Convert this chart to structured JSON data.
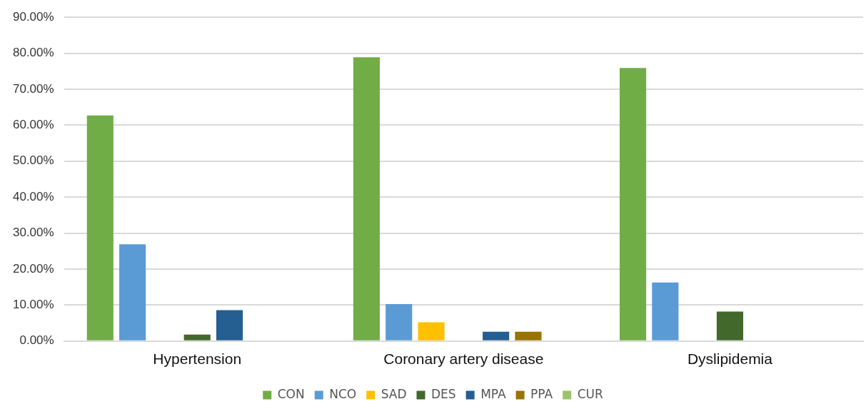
{
  "chart_data": {
    "type": "bar",
    "categories": [
      "Hypertension",
      "Coronary artery disease",
      "Dyslipidemia"
    ],
    "series": [
      {
        "name": "CON",
        "color": "#70ad47",
        "values": [
          62.7,
          78.9,
          75.9
        ]
      },
      {
        "name": "NCO",
        "color": "#5b9bd5",
        "values": [
          26.9,
          10.3,
          16.3
        ]
      },
      {
        "name": "SAD",
        "color": "#ffc000",
        "values": [
          0,
          5.2,
          0
        ]
      },
      {
        "name": "DES",
        "color": "#43682b",
        "values": [
          1.8,
          0,
          8.2
        ]
      },
      {
        "name": "MPA",
        "color": "#255e91",
        "values": [
          8.6,
          2.6,
          0
        ]
      },
      {
        "name": "PPA",
        "color": "#997300",
        "values": [
          0,
          2.6,
          0
        ]
      },
      {
        "name": "CUR",
        "color": "#9dc36a",
        "values": [
          0,
          0,
          0
        ]
      }
    ],
    "ylim": [
      0,
      90
    ],
    "yticks": [
      {
        "value": 0,
        "label": "0.00%"
      },
      {
        "value": 10,
        "label": "10.00%"
      },
      {
        "value": 20,
        "label": "20.00%"
      },
      {
        "value": 30,
        "label": "30.00%"
      },
      {
        "value": 40,
        "label": "40.00%"
      },
      {
        "value": 50,
        "label": "50.00%"
      },
      {
        "value": 60,
        "label": "60.00%"
      },
      {
        "value": 70,
        "label": "70.00%"
      },
      {
        "value": 80,
        "label": "80.00%"
      },
      {
        "value": 90,
        "label": "90.00%"
      }
    ],
    "grid": "y",
    "legend": "bottom"
  }
}
